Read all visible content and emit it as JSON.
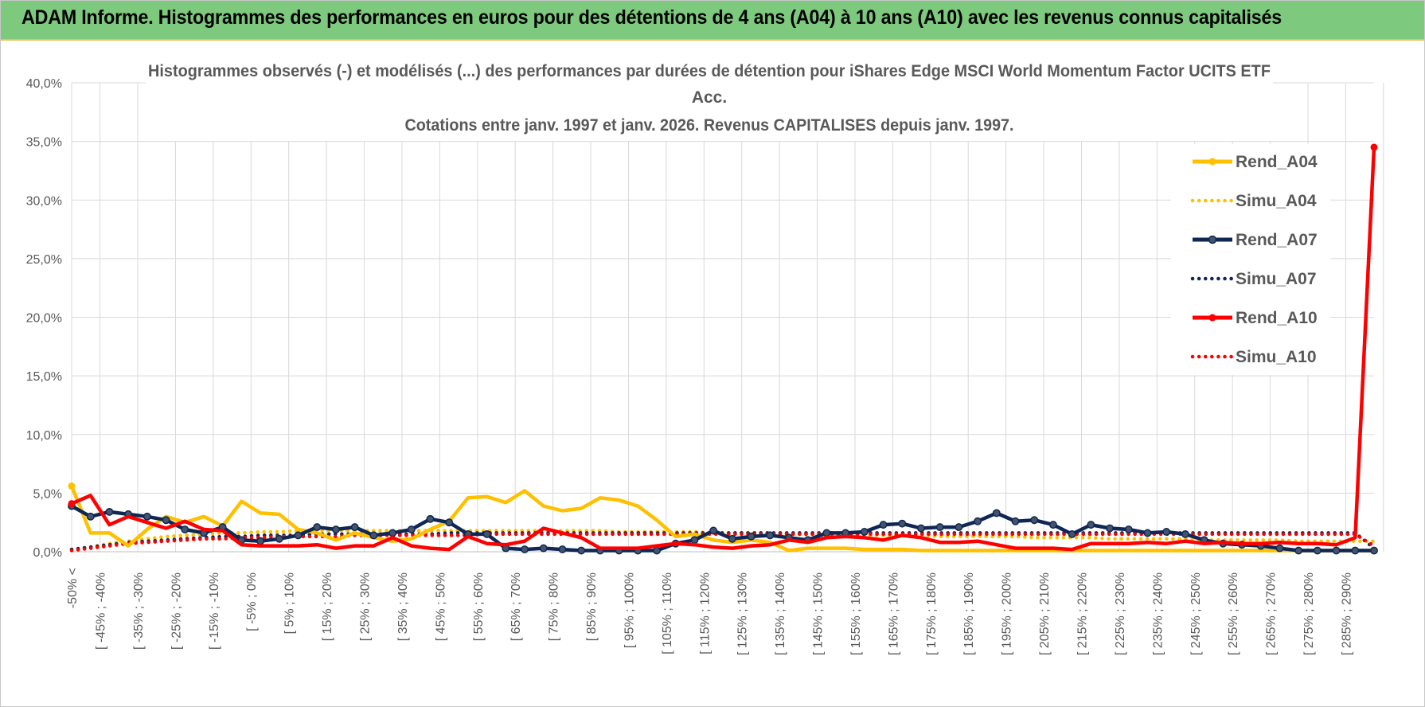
{
  "header": {
    "banner_title": "ADAM Informe. Histogrammes des performances en euros pour des détentions de 4 ans (A04) à 10 ans (A10) avec les revenus connus capitalisés"
  },
  "colors": {
    "banner": "#7dc97d",
    "A04": "#ffc000",
    "A07": "#0f2755",
    "A10": "#ff0000",
    "grid": "#d9d9d9",
    "text": "#595959"
  },
  "chart_data": {
    "type": "line",
    "title_lines": [
      "Histogrammes observés (-) et modélisés (...) des performances par durées de détention pour iShares Edge MSCI World Momentum Factor UCITS ETF",
      "Acc.",
      "Cotations entre janv. 1997 et janv. 2026. Revenus CAPITALISES depuis janv. 1997."
    ],
    "ylim": [
      0,
      40
    ],
    "y_ticks": [
      "0,0%",
      "5,0%",
      "10,0%",
      "15,0%",
      "20,0%",
      "25,0%",
      "30,0%",
      "35,0%",
      "40,0%"
    ],
    "x_labels": [
      "-50% <",
      "[ -45% ; -40%",
      "[ -35% ; -30%",
      "[ -25% ; -20%",
      "[ -15% ; -10%",
      "[ -5% ; 0%",
      "[ 5% ; 10%",
      "[ 15% ; 20%",
      "[ 25% ; 30%",
      "[ 35% ; 40%",
      "[ 45% ; 50%",
      "[ 55% ; 60%",
      "[ 65% ; 70%",
      "[ 75% ; 80%",
      "[ 85% ; 90%",
      "[ 95% ; 100%",
      "[ 105% ; 110%",
      "[ 115% ; 120%",
      "[ 125% ; 130%",
      "[ 135% ; 140%",
      "[ 145% ; 150%",
      "[ 155% ; 160%",
      "[ 165% ; 170%",
      "[ 175% ; 180%",
      "[ 185% ; 190%",
      "[ 195% ; 200%",
      "[ 205% ; 210%",
      "[ 215% ; 220%",
      "[ 225% ; 230%",
      "[ 235% ; 240%",
      "[ 245% ; 250%",
      "[ 255% ; 260%",
      "[ 265% ; 270%",
      "[ 275% ; 280%",
      "[ 285% ; 290%"
    ],
    "n_categories": 70,
    "legend_position": "right",
    "series": [
      {
        "name": "Rend_A04",
        "style": "solid",
        "color": "#ffc000",
        "values": [
          5.6,
          1.6,
          1.6,
          0.5,
          1.9,
          3.0,
          2.5,
          3.0,
          2.2,
          4.3,
          3.3,
          3.2,
          1.9,
          1.6,
          1.0,
          1.6,
          1.2,
          0.9,
          1.1,
          1.9,
          2.6,
          4.6,
          4.7,
          4.2,
          5.2,
          3.9,
          3.5,
          3.7,
          4.6,
          4.4,
          3.9,
          2.7,
          1.3,
          1.5,
          1.0,
          0.8,
          1.0,
          0.8,
          0.1,
          0.3,
          0.3,
          0.3,
          0.2,
          0.2,
          0.2,
          0.1,
          0.1,
          0.1,
          0.1,
          0.1,
          0.1,
          0.1,
          0.1,
          0.1,
          0.1,
          0.1,
          0.1,
          0.1,
          0.1,
          0.1,
          0.1,
          0.1,
          0.1,
          0.1,
          0.1,
          0.1,
          0.1,
          0.1,
          0.1,
          0.1
        ]
      },
      {
        "name": "Simu_A04",
        "style": "dotted",
        "color": "#ffc000",
        "values": [
          0.2,
          0.4,
          0.7,
          0.9,
          1.1,
          1.3,
          1.4,
          1.5,
          1.6,
          1.6,
          1.7,
          1.7,
          1.8,
          1.8,
          1.8,
          1.8,
          1.8,
          1.8,
          1.8,
          1.8,
          1.8,
          1.8,
          1.8,
          1.8,
          1.8,
          1.8,
          1.8,
          1.8,
          1.8,
          1.7,
          1.7,
          1.7,
          1.7,
          1.7,
          1.6,
          1.6,
          1.6,
          1.6,
          1.5,
          1.5,
          1.5,
          1.5,
          1.4,
          1.4,
          1.4,
          1.4,
          1.3,
          1.3,
          1.3,
          1.3,
          1.3,
          1.2,
          1.2,
          1.2,
          1.2,
          1.1,
          1.1,
          1.1,
          1.1,
          1.1,
          1.0,
          1.0,
          1.0,
          1.0,
          1.0,
          0.9,
          0.9,
          0.9,
          0.9,
          0.9
        ]
      },
      {
        "name": "Rend_A07",
        "style": "solid",
        "color": "#0f2755",
        "values": [
          3.9,
          3.0,
          3.4,
          3.2,
          3.0,
          2.7,
          1.9,
          1.6,
          2.1,
          1.0,
          0.9,
          1.1,
          1.4,
          2.1,
          1.9,
          2.1,
          1.4,
          1.6,
          1.9,
          2.8,
          2.5,
          1.5,
          1.5,
          0.3,
          0.2,
          0.3,
          0.2,
          0.1,
          0.1,
          0.1,
          0.1,
          0.1,
          0.7,
          1.0,
          1.8,
          1.1,
          1.3,
          1.4,
          1.2,
          1.0,
          1.6,
          1.6,
          1.7,
          2.3,
          2.4,
          2.0,
          2.1,
          2.1,
          2.6,
          3.3,
          2.6,
          2.7,
          2.3,
          1.5,
          2.3,
          2.0,
          1.9,
          1.6,
          1.7,
          1.5,
          1.0,
          0.7,
          0.6,
          0.5,
          0.3,
          0.1,
          0.1,
          0.1,
          0.1,
          0.1
        ]
      },
      {
        "name": "Simu_A07",
        "style": "dotted",
        "color": "#0f2755",
        "values": [
          0.2,
          0.4,
          0.6,
          0.8,
          0.9,
          1.0,
          1.1,
          1.2,
          1.3,
          1.3,
          1.4,
          1.4,
          1.4,
          1.5,
          1.5,
          1.5,
          1.5,
          1.5,
          1.5,
          1.5,
          1.6,
          1.6,
          1.6,
          1.6,
          1.6,
          1.6,
          1.6,
          1.6,
          1.6,
          1.6,
          1.6,
          1.6,
          1.6,
          1.6,
          1.6,
          1.6,
          1.6,
          1.6,
          1.6,
          1.6,
          1.6,
          1.6,
          1.6,
          1.6,
          1.6,
          1.6,
          1.6,
          1.6,
          1.6,
          1.6,
          1.6,
          1.6,
          1.6,
          1.6,
          1.6,
          1.6,
          1.6,
          1.6,
          1.6,
          1.6,
          1.6,
          1.6,
          1.6,
          1.6,
          1.6,
          1.6,
          1.6,
          1.6,
          1.6,
          0.3
        ]
      },
      {
        "name": "Rend_A10",
        "style": "solid",
        "color": "#ff0000",
        "values": [
          4.1,
          4.8,
          2.3,
          3.0,
          2.5,
          2.0,
          2.6,
          1.9,
          1.8,
          0.6,
          0.5,
          0.5,
          0.5,
          0.6,
          0.3,
          0.5,
          0.5,
          1.2,
          0.5,
          0.3,
          0.2,
          1.3,
          0.7,
          0.6,
          0.9,
          2.0,
          1.6,
          1.2,
          0.3,
          0.3,
          0.3,
          0.5,
          0.7,
          0.6,
          0.4,
          0.3,
          0.5,
          0.6,
          1.0,
          0.8,
          1.2,
          1.3,
          1.2,
          1.0,
          1.4,
          1.2,
          0.8,
          0.8,
          0.9,
          0.6,
          0.3,
          0.3,
          0.3,
          0.2,
          0.7,
          0.7,
          0.7,
          0.8,
          0.7,
          0.9,
          0.7,
          0.8,
          0.7,
          0.7,
          0.8,
          0.7,
          0.7,
          0.6,
          1.2,
          34.5
        ]
      },
      {
        "name": "Simu_A10",
        "style": "dotted",
        "color": "#ff0000",
        "values": [
          0.1,
          0.3,
          0.5,
          0.7,
          0.8,
          0.9,
          1.0,
          1.1,
          1.1,
          1.2,
          1.2,
          1.3,
          1.3,
          1.3,
          1.3,
          1.4,
          1.4,
          1.4,
          1.4,
          1.4,
          1.4,
          1.4,
          1.5,
          1.5,
          1.5,
          1.5,
          1.5,
          1.5,
          1.5,
          1.5,
          1.5,
          1.5,
          1.5,
          1.5,
          1.5,
          1.5,
          1.5,
          1.5,
          1.5,
          1.5,
          1.5,
          1.5,
          1.5,
          1.5,
          1.5,
          1.5,
          1.5,
          1.5,
          1.5,
          1.5,
          1.5,
          1.5,
          1.5,
          1.5,
          1.5,
          1.5,
          1.5,
          1.5,
          1.5,
          1.5,
          1.5,
          1.5,
          1.5,
          1.5,
          1.5,
          1.5,
          1.5,
          1.5,
          1.5,
          0.5
        ]
      }
    ]
  }
}
